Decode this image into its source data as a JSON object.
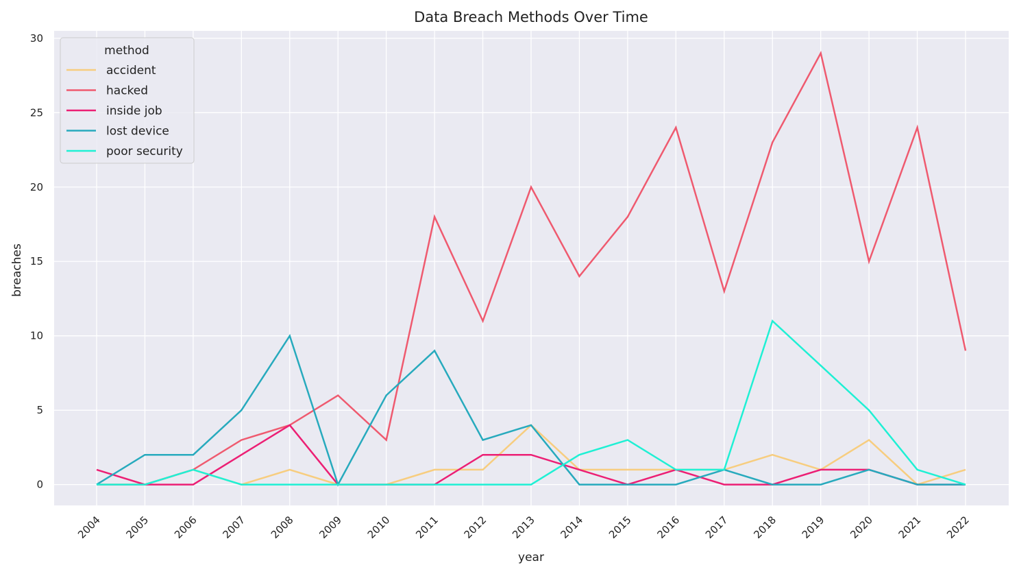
{
  "chart_data": {
    "type": "line",
    "title": "Data Breach Methods Over Time",
    "xlabel": "year",
    "ylabel": "breaches",
    "ylim": [
      -1.4,
      30.5
    ],
    "yticks": [
      0,
      5,
      10,
      15,
      20,
      25,
      30
    ],
    "grid": true,
    "legend": {
      "title": "method",
      "placement": "top-left"
    },
    "categories": [
      "2004",
      "2005",
      "2006",
      "2007",
      "2008",
      "2009",
      "2010",
      "2011",
      "2012",
      "2013",
      "2014",
      "2015",
      "2016",
      "2017",
      "2018",
      "2019",
      "2020",
      "2021",
      "2022"
    ],
    "series": [
      {
        "name": "accident",
        "color": "#f7cd7f",
        "values": [
          0,
          0,
          1,
          0,
          1,
          0,
          0,
          1,
          1,
          4,
          1,
          1,
          1,
          1,
          2,
          1,
          3,
          0,
          1
        ]
      },
      {
        "name": "hacked",
        "color": "#ef5a6f",
        "values": [
          0,
          0,
          1,
          3,
          4,
          6,
          3,
          18,
          11,
          20,
          14,
          18,
          24,
          13,
          23,
          29,
          15,
          24,
          9
        ]
      },
      {
        "name": "inside job",
        "color": "#ec1f74",
        "values": [
          1,
          0,
          0,
          2,
          4,
          0,
          0,
          0,
          2,
          2,
          1,
          0,
          1,
          0,
          0,
          1,
          1,
          0,
          0
        ]
      },
      {
        "name": "lost device",
        "color": "#27aabd",
        "values": [
          0,
          2,
          2,
          5,
          10,
          0,
          6,
          9,
          3,
          4,
          0,
          0,
          0,
          1,
          0,
          0,
          1,
          0,
          0
        ]
      },
      {
        "name": "poor security",
        "color": "#1ff0d4",
        "values": [
          0,
          0,
          1,
          0,
          0,
          0,
          0,
          0,
          0,
          0,
          2,
          3,
          1,
          1,
          11,
          8,
          5,
          1,
          0
        ]
      }
    ]
  }
}
